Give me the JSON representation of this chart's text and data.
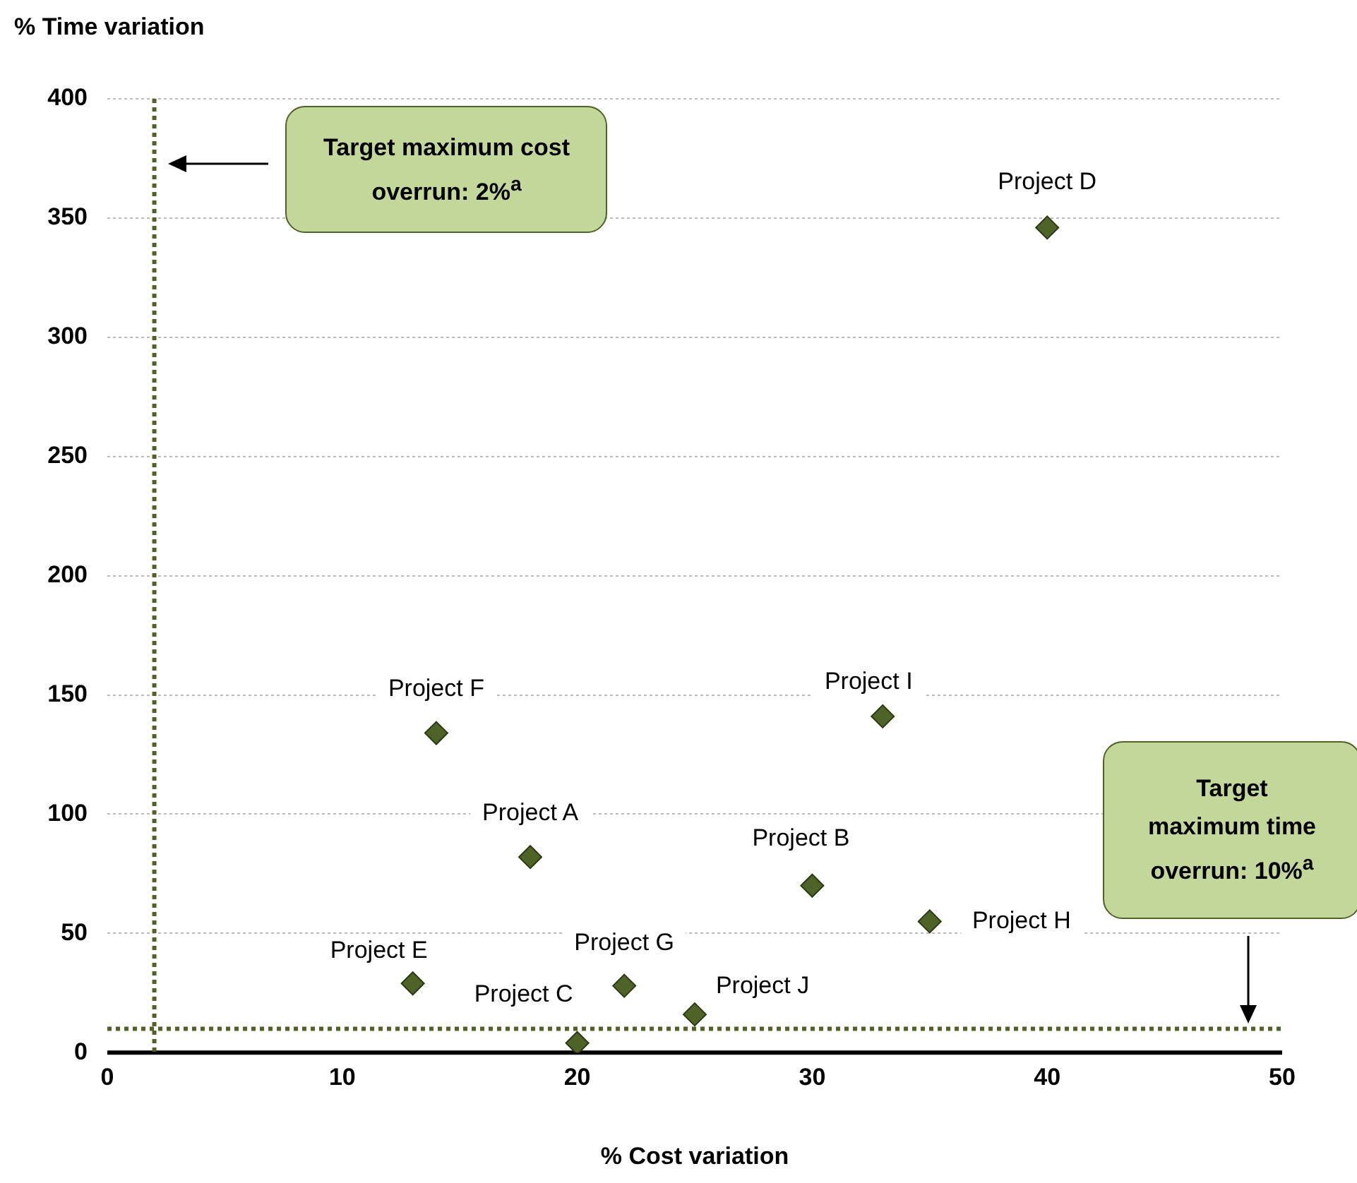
{
  "chart_data": {
    "type": "scatter",
    "xlabel": "% Cost variation",
    "ylabel": "% Time variation",
    "xlim": [
      0,
      50
    ],
    "xticks": [
      0,
      10,
      20,
      30,
      40,
      50
    ],
    "ylim": [
      0,
      400
    ],
    "yticks": [
      0,
      50,
      100,
      150,
      200,
      250,
      300,
      350,
      400
    ],
    "grid": "y",
    "legend": false,
    "marker": "diamond",
    "series": [
      {
        "name": "Project A",
        "color": "#4f6228",
        "x": [
          18
        ],
        "values": [
          82
        ]
      },
      {
        "name": "Project B",
        "color": "#4f6228",
        "x": [
          30
        ],
        "values": [
          70
        ]
      },
      {
        "name": "Project C",
        "color": "#4f6228",
        "x": [
          20
        ],
        "values": [
          4
        ]
      },
      {
        "name": "Project D",
        "color": "#4f6228",
        "x": [
          40
        ],
        "values": [
          346
        ]
      },
      {
        "name": "Project E",
        "color": "#4f6228",
        "x": [
          13
        ],
        "values": [
          29
        ]
      },
      {
        "name": "Project F",
        "color": "#4f6228",
        "x": [
          14
        ],
        "values": [
          134
        ]
      },
      {
        "name": "Project G",
        "color": "#4f6228",
        "x": [
          22
        ],
        "values": [
          28
        ]
      },
      {
        "name": "Project H",
        "color": "#4f6228",
        "x": [
          35
        ],
        "values": [
          55
        ]
      },
      {
        "name": "Project I",
        "color": "#4f6228",
        "x": [
          33
        ],
        "values": [
          141
        ]
      },
      {
        "name": "Project J",
        "color": "#4f6228",
        "x": [
          25
        ],
        "values": [
          16
        ]
      }
    ],
    "ref_lines": [
      {
        "axis": "x",
        "value": 2,
        "color": "#4f6228",
        "line_style": "dotted"
      },
      {
        "axis": "y",
        "value": 10,
        "color": "#4f6228",
        "line_style": "dotted"
      }
    ],
    "annotations": [
      "Target maximum cost overrun: 2%$^{a}$",
      "Target maximum time overrun: 10%$^{a}$"
    ]
  }
}
